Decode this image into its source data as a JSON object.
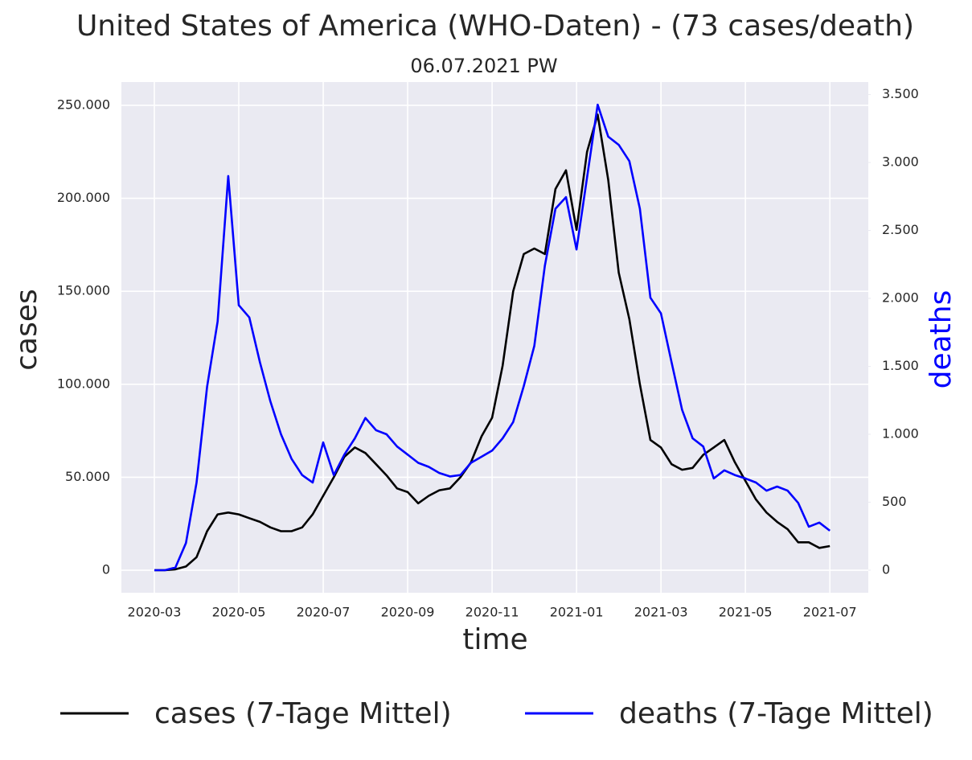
{
  "chart_data": {
    "type": "line",
    "title": "United States of America (WHO-Daten) - (73 cases/death)",
    "subtitle": "06.07.2021 PW",
    "x_label": "time",
    "y_label": "cases",
    "y2_label": "deaths",
    "grid": true,
    "x": [
      0,
      0.25,
      0.5,
      0.75,
      1,
      1.25,
      1.5,
      1.75,
      2,
      2.25,
      2.5,
      2.75,
      3,
      3.25,
      3.5,
      3.75,
      4,
      4.25,
      4.5,
      4.75,
      5,
      5.25,
      5.5,
      5.75,
      6,
      6.25,
      6.5,
      6.75,
      7,
      7.25,
      7.5,
      7.75,
      8,
      8.25,
      8.5,
      8.75,
      9,
      9.25,
      9.5,
      9.75,
      10,
      10.25,
      10.5,
      10.75,
      11,
      11.25,
      11.5,
      11.75,
      12,
      12.25,
      12.5,
      12.75,
      13,
      13.25,
      13.5,
      13.75,
      14,
      14.25,
      14.5,
      14.75,
      15,
      15.25,
      15.5,
      15.75,
      16
    ],
    "xlim": [
      -0.78,
      16.91
    ],
    "xticks": [
      {
        "value": 0,
        "label": "2020-03"
      },
      {
        "value": 2,
        "label": "2020-05"
      },
      {
        "value": 4,
        "label": "2020-07"
      },
      {
        "value": 6,
        "label": "2020-09"
      },
      {
        "value": 8,
        "label": "2020-11"
      },
      {
        "value": 10,
        "label": "2021-01"
      },
      {
        "value": 12,
        "label": "2021-03"
      },
      {
        "value": 14,
        "label": "2021-05"
      },
      {
        "value": 16,
        "label": "2021-07"
      }
    ],
    "ylim": [
      -12100,
      262500
    ],
    "yticks": [
      0,
      {
        "value": 50000,
        "label": "50.000"
      },
      {
        "value": 100000,
        "label": "100.000"
      },
      {
        "value": 150000,
        "label": "150.000"
      },
      {
        "value": 200000,
        "label": "200.000"
      },
      {
        "value": 250000,
        "label": "250.000"
      }
    ],
    "y2lim": [
      -166,
      3592
    ],
    "y2ticks": [
      0,
      500,
      {
        "value": 1000,
        "label": "1.000"
      },
      {
        "value": 1500,
        "label": "1.500"
      },
      {
        "value": 2000,
        "label": "2.000"
      },
      {
        "value": 2500,
        "label": "2.500"
      },
      {
        "value": 3000,
        "label": "3.000"
      },
      {
        "value": 3500,
        "label": "3.500"
      }
    ],
    "series": [
      {
        "name": "cases (7-Tage Mittel)",
        "color": "#000000",
        "values": [
          0,
          0,
          500,
          2000,
          7000,
          21000,
          30000,
          31000,
          30000,
          28000,
          26000,
          23000,
          21000,
          21000,
          23000,
          30000,
          40000,
          50000,
          61000,
          66000,
          63000,
          57000,
          51000,
          44000,
          42000,
          36000,
          40000,
          43000,
          44000,
          50000,
          58000,
          72000,
          82000,
          110000,
          150000,
          170000,
          173000,
          170000,
          205000,
          215000,
          183000,
          225000,
          245000,
          210000,
          160000,
          135000,
          100000,
          70000,
          66000,
          57000,
          54000,
          55000,
          62000,
          66000,
          70000,
          58000,
          48000,
          38000,
          31000,
          26000,
          22000,
          15000,
          15000,
          12000,
          13000
        ]
      },
      {
        "name": "deaths (7-Tage Mittel)",
        "color": "#0000ff",
        "axis": "y2",
        "values": [
          0,
          0,
          20,
          200,
          645,
          1350,
          1830,
          2900,
          1950,
          1860,
          1530,
          1240,
          1000,
          820,
          700,
          645,
          940,
          700,
          850,
          970,
          1120,
          1030,
          1000,
          910,
          850,
          790,
          760,
          715,
          690,
          700,
          790,
          835,
          880,
          970,
          1090,
          1355,
          1650,
          2240,
          2660,
          2745,
          2360,
          2890,
          3425,
          3190,
          3130,
          3010,
          2660,
          2005,
          1890,
          1530,
          1180,
          970,
          910,
          675,
          735,
          700,
          675,
          645,
          585,
          615,
          585,
          495,
          320,
          350,
          290
        ]
      }
    ]
  }
}
